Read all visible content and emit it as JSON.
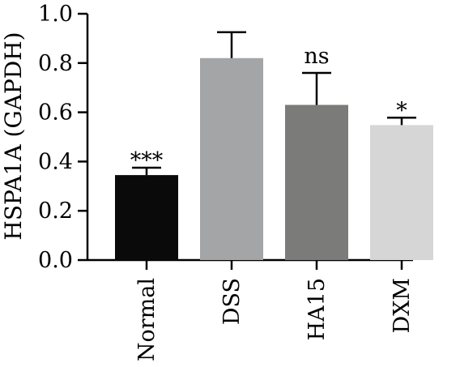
{
  "chart_data": {
    "type": "bar",
    "title": "",
    "xlabel": "",
    "ylabel": "HSPA1A (GAPDH)",
    "ylim": [
      0,
      1.0
    ],
    "yticks": [
      "0.0",
      "0.2",
      "0.4",
      "0.6",
      "0.8",
      "1.0"
    ],
    "categories": [
      "Normal",
      "DSS",
      "HA15",
      "DXM"
    ],
    "values": [
      0.345,
      0.82,
      0.63,
      0.548
    ],
    "errors": [
      0.03,
      0.105,
      0.13,
      0.03
    ],
    "significance": [
      "***",
      "",
      "ns",
      "*"
    ],
    "colors": [
      "#0a0a0a",
      "#a4a5a7",
      "#7b7c7a",
      "#d6d6d6"
    ],
    "legend": "none",
    "grid": false
  }
}
